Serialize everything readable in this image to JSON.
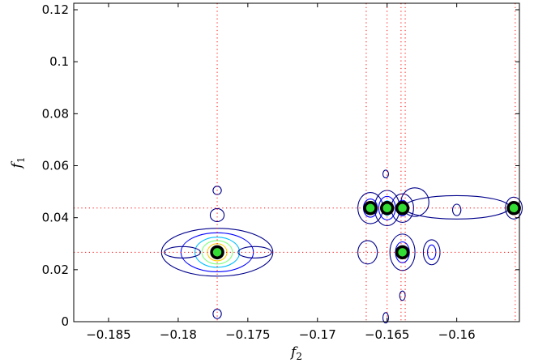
{
  "chart_data": {
    "type": "contour",
    "title": "",
    "xlabel": {
      "main": "f",
      "sub": "2"
    },
    "ylabel": {
      "main": "f",
      "sub": "1"
    },
    "xlim": [
      -0.1875,
      -0.1555
    ],
    "ylim": [
      0,
      0.1225
    ],
    "x_ticks": [
      -0.185,
      -0.18,
      -0.175,
      -0.17,
      -0.165,
      -0.16
    ],
    "x_tick_labels": [
      "−0.185",
      "−0.18",
      "−0.175",
      "−0.17",
      "−0.165",
      "−0.16"
    ],
    "y_ticks": [
      0,
      0.02,
      0.04,
      0.06,
      0.08,
      0.1,
      0.12
    ],
    "y_tick_labels": [
      "0",
      "0.02",
      "0.04",
      "0.06",
      "0.08",
      "0.1",
      "0.12"
    ],
    "grid": false,
    "reference_lines": {
      "color": "#ff0000",
      "style": "dotted",
      "x": [
        -0.1772,
        -0.1665,
        -0.165,
        -0.164,
        -0.1637,
        -0.1558
      ],
      "y": [
        0.0437,
        0.0267
      ]
    },
    "peaks": [
      {
        "x": -0.1772,
        "y": 0.0267
      },
      {
        "x": -0.1662,
        "y": 0.0437
      },
      {
        "x": -0.165,
        "y": 0.0437
      },
      {
        "x": -0.1639,
        "y": 0.0437
      },
      {
        "x": -0.1639,
        "y": 0.0267
      },
      {
        "x": -0.1559,
        "y": 0.0437
      }
    ],
    "peak_marker": {
      "fill": "#33dd33",
      "edge": "#000000"
    },
    "contour_colors": [
      "#00008b",
      "#0000ff",
      "#00bfff",
      "#7fff7f",
      "#ffcc00",
      "#ff0000"
    ],
    "contours": [
      {
        "x": -0.1772,
        "y": 0.0267,
        "rx": 0.004,
        "ry": 0.0092,
        "level": 0
      },
      {
        "x": -0.1772,
        "y": 0.0267,
        "rx": 0.0026,
        "ry": 0.0075,
        "level": 1
      },
      {
        "x": -0.1772,
        "y": 0.0267,
        "rx": 0.0016,
        "ry": 0.0058,
        "level": 2
      },
      {
        "x": -0.1772,
        "y": 0.0267,
        "rx": 0.0011,
        "ry": 0.0045,
        "level": 3
      },
      {
        "x": -0.1772,
        "y": 0.0267,
        "rx": 0.0007,
        "ry": 0.0033,
        "level": 4
      },
      {
        "x": -0.1772,
        "y": 0.0267,
        "rx": 0.0004,
        "ry": 0.002,
        "level": 5
      },
      {
        "x": -0.1797,
        "y": 0.0267,
        "rx": 0.0013,
        "ry": 0.0022,
        "level": 0
      },
      {
        "x": -0.1745,
        "y": 0.0267,
        "rx": 0.0012,
        "ry": 0.0022,
        "level": 0
      },
      {
        "x": -0.1772,
        "y": 0.041,
        "rx": 0.0005,
        "ry": 0.0025,
        "level": 0
      },
      {
        "x": -0.1772,
        "y": 0.0505,
        "rx": 0.0003,
        "ry": 0.0016,
        "level": 0
      },
      {
        "x": -0.1772,
        "y": 0.003,
        "rx": 0.0003,
        "ry": 0.0018,
        "level": 0
      },
      {
        "x": -0.1662,
        "y": 0.0437,
        "rx": 0.0009,
        "ry": 0.006,
        "level": 0
      },
      {
        "x": -0.1662,
        "y": 0.0437,
        "rx": 0.0005,
        "ry": 0.0035,
        "level": 1
      },
      {
        "x": -0.165,
        "y": 0.0437,
        "rx": 0.0009,
        "ry": 0.0068,
        "level": 0
      },
      {
        "x": -0.165,
        "y": 0.0437,
        "rx": 0.0006,
        "ry": 0.0045,
        "level": 1
      },
      {
        "x": -0.165,
        "y": 0.0437,
        "rx": 0.0003,
        "ry": 0.0028,
        "level": 2
      },
      {
        "x": -0.1639,
        "y": 0.0437,
        "rx": 0.0008,
        "ry": 0.0055,
        "level": 0
      },
      {
        "x": -0.1639,
        "y": 0.0437,
        "rx": 0.0004,
        "ry": 0.003,
        "level": 1
      },
      {
        "x": -0.163,
        "y": 0.046,
        "rx": 0.001,
        "ry": 0.0055,
        "level": 0
      },
      {
        "x": -0.16,
        "y": 0.044,
        "rx": 0.0038,
        "ry": 0.0045,
        "level": 0
      },
      {
        "x": -0.16,
        "y": 0.043,
        "rx": 0.0003,
        "ry": 0.0022,
        "level": 0
      },
      {
        "x": -0.1559,
        "y": 0.0437,
        "rx": 0.0006,
        "ry": 0.0042,
        "level": 0
      },
      {
        "x": -0.1651,
        "y": 0.0568,
        "rx": 0.0002,
        "ry": 0.0015,
        "level": 0
      },
      {
        "x": -0.1639,
        "y": 0.0267,
        "rx": 0.0009,
        "ry": 0.007,
        "level": 0
      },
      {
        "x": -0.1639,
        "y": 0.0267,
        "rx": 0.0005,
        "ry": 0.004,
        "level": 1
      },
      {
        "x": -0.1639,
        "y": 0.0267,
        "rx": 0.0003,
        "ry": 0.0022,
        "level": 2
      },
      {
        "x": -0.1664,
        "y": 0.0267,
        "rx": 0.0007,
        "ry": 0.0045,
        "level": 0
      },
      {
        "x": -0.1618,
        "y": 0.0267,
        "rx": 0.0006,
        "ry": 0.0048,
        "level": 0
      },
      {
        "x": -0.1618,
        "y": 0.0267,
        "rx": 0.0003,
        "ry": 0.0028,
        "level": 1
      },
      {
        "x": -0.1639,
        "y": 0.01,
        "rx": 0.0002,
        "ry": 0.0018,
        "level": 0
      },
      {
        "x": -0.1651,
        "y": 0.0015,
        "rx": 0.0002,
        "ry": 0.002,
        "level": 0
      }
    ]
  }
}
